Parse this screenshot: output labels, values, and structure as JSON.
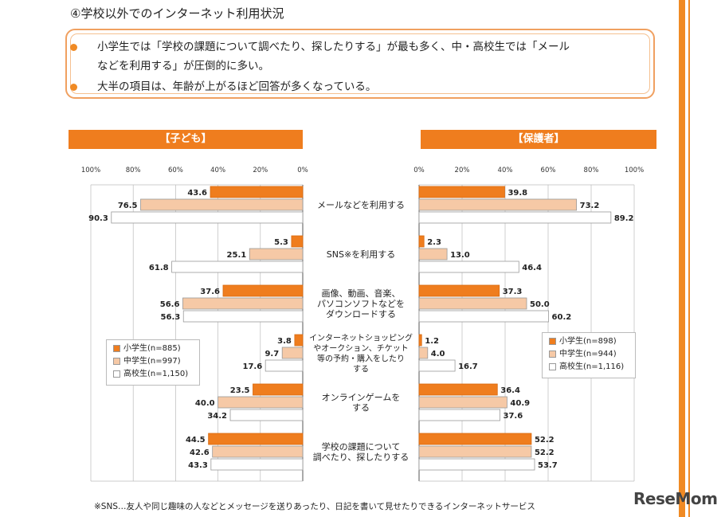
{
  "title": "④学校以外でのインターネット利用状況",
  "summary": [
    "小学生では「学校の課題について調べたり、探したりする」が最も多く、中・高校生では「メール",
    "などを利用する」が圧倒的に多い。",
    "大半の項目は、年齢が上がるほど回答が多くなっている。"
  ],
  "panels": {
    "child_header": "【子ども】",
    "parent_header": "【保護者】"
  },
  "axis_ticks": [
    "0%",
    "20%",
    "40%",
    "60%",
    "80%",
    "100%"
  ],
  "colors": {
    "elementary": "#ef7d1e",
    "middle": "#f6c9a6",
    "high": "#ffffff",
    "accent": "#f08a24"
  },
  "chart_data": [
    {
      "type": "bar",
      "orientation": "horizontal",
      "panel": "【子ども】",
      "direction": "right-to-left",
      "xlim": [
        0,
        100
      ],
      "categories": [
        "メールなどを利用する",
        "SNS※を利用する",
        "画像、動画、音楽、パソコンソフトなどをダウンロードする",
        "インターネットショッピングやオークション、チケット等の予約・購入をしたりする",
        "オンラインゲームをする",
        "学校の課題について調べたり、探したりする"
      ],
      "series": [
        {
          "name": "小学生(n=885)",
          "values": [
            43.6,
            5.3,
            37.6,
            3.8,
            23.5,
            44.5
          ]
        },
        {
          "name": "中学生(n=997)",
          "values": [
            76.5,
            25.1,
            56.6,
            9.7,
            40.0,
            42.6
          ]
        },
        {
          "name": "高校生(n=1,150)",
          "values": [
            90.3,
            61.8,
            56.3,
            17.6,
            34.2,
            43.3
          ]
        }
      ]
    },
    {
      "type": "bar",
      "orientation": "horizontal",
      "panel": "【保護者】",
      "direction": "left-to-right",
      "xlim": [
        0,
        100
      ],
      "categories": [
        "メールなどを利用する",
        "SNS※を利用する",
        "画像、動画、音楽、パソコンソフトなどをダウンロードする",
        "インターネットショッピングやオークション、チケット等の予約・購入をしたりする",
        "オンラインゲームをする",
        "学校の課題について調べたり、探したりする"
      ],
      "series": [
        {
          "name": "小学生(n=898)",
          "values": [
            39.8,
            2.3,
            37.3,
            1.2,
            36.4,
            52.2
          ]
        },
        {
          "name": "中学生(n=944)",
          "values": [
            73.2,
            13.0,
            50.0,
            4.0,
            40.9,
            52.2
          ]
        },
        {
          "name": "高校生(n=1,116)",
          "values": [
            89.2,
            46.4,
            60.2,
            16.7,
            37.6,
            53.7
          ]
        }
      ]
    }
  ],
  "category_labels": [
    [
      "メールなどを利用する"
    ],
    [
      "SNS※を利用する"
    ],
    [
      "画像、動画、音楽、",
      "パソコンソフトなどを",
      "ダウンロードする"
    ],
    [
      "インターネットショッピング",
      "やオークション、チケット",
      "等の予約・購入をしたり",
      "する"
    ],
    [
      "オンラインゲームを",
      "する"
    ],
    [
      "学校の課題について",
      "調べたり、探したりする"
    ]
  ],
  "legend_child": [
    "小学生(n=885)",
    "中学生(n=997)",
    "高校生(n=1,150)"
  ],
  "legend_parent": [
    "小学生(n=898)",
    "中学生(n=944)",
    "高校生(n=1,116)"
  ],
  "footnote": "※SNS…友人や同じ趣味の人などとメッセージを送りあったり、日記を書いて見せたりできるインターネットサービス",
  "logo": "ReseMom"
}
